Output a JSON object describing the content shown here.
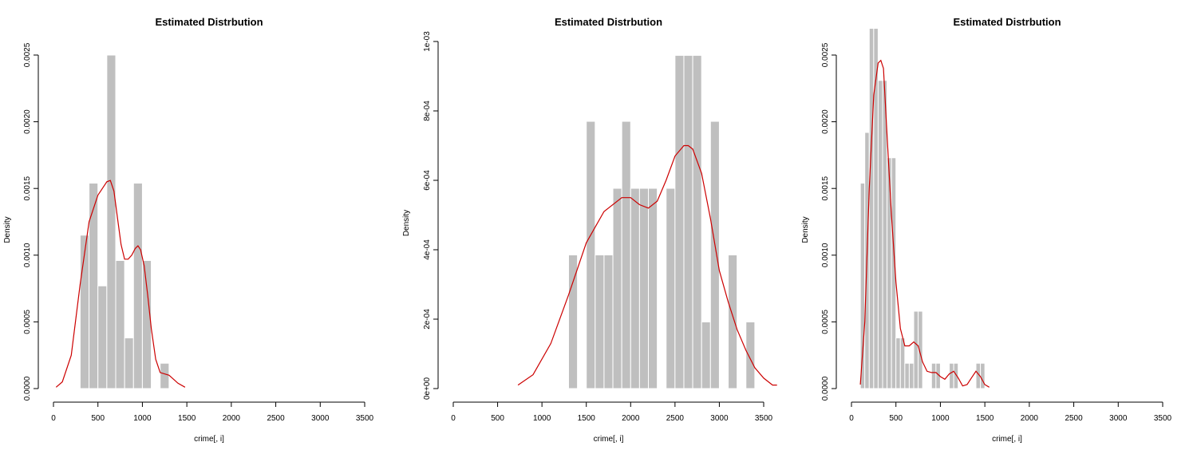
{
  "chart_data": [
    {
      "type": "bar",
      "title": "Estimated Distrbution",
      "xlabel": "crime[, i]",
      "ylabel": "Density",
      "xlim": [
        0,
        3500
      ],
      "ylim": [
        0,
        0.0025
      ],
      "x_ticks": [
        0,
        500,
        1000,
        1500,
        2000,
        2500,
        3000,
        3500
      ],
      "x_tick_labels": [
        "0",
        "500",
        "1000",
        "1500",
        "2000",
        "2500",
        "3000",
        "3500"
      ],
      "y_ticks": [
        0,
        0.0005,
        0.001,
        0.0015,
        0.002,
        0.0025
      ],
      "y_tick_labels": [
        "0.0000",
        "0.0005",
        "0.0010",
        "0.0015",
        "0.0020",
        "0.0025"
      ],
      "histogram": {
        "bin_width": 100,
        "bins_start": [
          300,
          400,
          500,
          600,
          700,
          800,
          900,
          1000,
          1100,
          1200
        ],
        "density": [
          0.00115,
          0.00154,
          0.00077,
          0.0025,
          0.00096,
          0.00038,
          0.00154,
          0.00096,
          0,
          0.00019
        ]
      },
      "density_curve": {
        "x": [
          30,
          100,
          200,
          300,
          400,
          500,
          550,
          600,
          640,
          680,
          720,
          760,
          800,
          840,
          880,
          920,
          950,
          980,
          1020,
          1060,
          1100,
          1150,
          1200,
          1300,
          1400,
          1480
        ],
        "y": [
          1e-05,
          5e-05,
          0.00025,
          0.00078,
          0.00125,
          0.00145,
          0.0015,
          0.00155,
          0.00156,
          0.00148,
          0.00128,
          0.00108,
          0.00097,
          0.00097,
          0.001,
          0.00105,
          0.00107,
          0.00104,
          0.00092,
          0.0007,
          0.00045,
          0.00022,
          0.00012,
          0.0001,
          4e-05,
          1e-05
        ]
      }
    },
    {
      "type": "bar",
      "title": "Estimated Distrbution",
      "xlabel": "crime[, i]",
      "ylabel": "Density",
      "xlim": [
        0,
        3500
      ],
      "ylim": [
        0,
        0.001
      ],
      "x_ticks": [
        0,
        500,
        1000,
        1500,
        2000,
        2500,
        3000,
        3500
      ],
      "x_tick_labels": [
        "0",
        "500",
        "1000",
        "1500",
        "2000",
        "2500",
        "3000",
        "3500"
      ],
      "y_ticks": [
        0,
        0.0002,
        0.0004,
        0.0006,
        0.0008,
        0.001
      ],
      "y_tick_labels": [
        "0e+00",
        "2e-04",
        "4e-04",
        "6e-04",
        "8e-04",
        "1e-03"
      ],
      "histogram": {
        "bin_width": 100,
        "bins_start": [
          1300,
          1400,
          1500,
          1600,
          1700,
          1800,
          1900,
          2000,
          2100,
          2200,
          2300,
          2400,
          2500,
          2600,
          2700,
          2800,
          2900,
          3000,
          3100,
          3200,
          3300
        ],
        "density": [
          0.000385,
          0,
          0.00077,
          0.000385,
          0.000385,
          0.000577,
          0.00077,
          0.000577,
          0.000577,
          0.000577,
          0,
          0.000577,
          0.00096,
          0.00096,
          0.00096,
          0.000192,
          0.00077,
          0,
          0.000385,
          0,
          0.000192
        ]
      },
      "density_curve": {
        "x": [
          730,
          900,
          1100,
          1300,
          1500,
          1700,
          1900,
          2000,
          2100,
          2200,
          2300,
          2400,
          2500,
          2600,
          2650,
          2700,
          2800,
          2900,
          3000,
          3100,
          3200,
          3300,
          3400,
          3500,
          3600,
          3650
        ],
        "y": [
          1e-05,
          4e-05,
          0.00013,
          0.00027,
          0.00042,
          0.00051,
          0.00055,
          0.00055,
          0.00053,
          0.00052,
          0.00054,
          0.0006,
          0.00067,
          0.0007,
          0.0007,
          0.00069,
          0.00062,
          0.00049,
          0.00034,
          0.00025,
          0.00017,
          0.00011,
          6e-05,
          3e-05,
          1e-05,
          1e-05
        ]
      }
    },
    {
      "type": "bar",
      "title": "Estimated Distrbution",
      "xlabel": "crime[, i]",
      "ylabel": "Density",
      "xlim": [
        0,
        3500
      ],
      "ylim": [
        0,
        0.0027
      ],
      "x_ticks": [
        0,
        500,
        1000,
        1500,
        2000,
        2500,
        3000,
        3500
      ],
      "x_tick_labels": [
        "0",
        "500",
        "1000",
        "1500",
        "2000",
        "2500",
        "3000",
        "3500"
      ],
      "y_ticks": [
        0,
        0.0005,
        0.001,
        0.0015,
        0.002,
        0.0025
      ],
      "y_tick_labels": [
        "0.0000",
        "0.0005",
        "0.0010",
        "0.0015",
        "0.0020",
        "0.0025"
      ],
      "histogram": {
        "bin_width": 50,
        "bins_start": [
          100,
          150,
          200,
          250,
          300,
          350,
          400,
          450,
          500,
          550,
          600,
          650,
          700,
          750,
          800,
          850,
          900,
          950,
          1000,
          1050,
          1100,
          1150,
          1200,
          1250,
          1300,
          1350,
          1400,
          1450
        ],
        "density": [
          0.00154,
          0.00192,
          0.0027,
          0.0027,
          0.00231,
          0.00231,
          0.00173,
          0.00173,
          0.00038,
          0.00038,
          0.00019,
          0.00019,
          0.00058,
          0.00058,
          0,
          0,
          0.00019,
          0.00019,
          0,
          0,
          0.00019,
          0.00019,
          0,
          0,
          0,
          0,
          0.00019,
          0.00019
        ]
      },
      "density_curve": {
        "x": [
          100,
          150,
          200,
          250,
          300,
          330,
          360,
          400,
          450,
          500,
          550,
          600,
          650,
          700,
          750,
          800,
          850,
          900,
          950,
          1000,
          1050,
          1100,
          1150,
          1200,
          1250,
          1300,
          1350,
          1400,
          1450,
          1500,
          1550
        ],
        "y": [
          3e-05,
          0.0005,
          0.0015,
          0.0022,
          0.00244,
          0.00246,
          0.0024,
          0.0019,
          0.0013,
          0.0008,
          0.00045,
          0.00032,
          0.00032,
          0.00035,
          0.00032,
          0.0002,
          0.00013,
          0.00012,
          0.00012,
          9e-05,
          7e-05,
          0.00011,
          0.00013,
          8e-05,
          2e-05,
          3e-05,
          8e-05,
          0.00013,
          9e-05,
          3e-05,
          1e-05
        ]
      }
    }
  ]
}
